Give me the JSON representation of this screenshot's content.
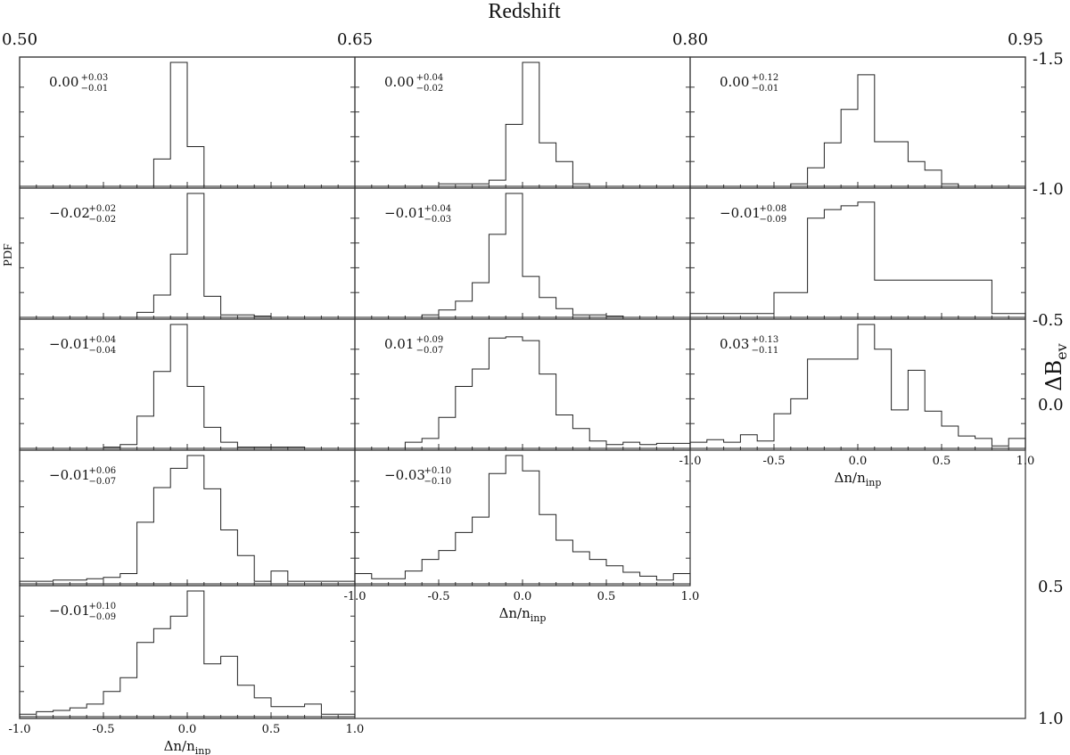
{
  "title": "Redshift",
  "top_ticks": [
    "0.50",
    "0.65",
    "0.80",
    "0.95"
  ],
  "right_ticks": [
    "-1.5",
    "-1.0",
    "-0.5",
    "0.0",
    "0.5",
    "1.0"
  ],
  "right_label": "ΔB",
  "right_label_sub": "ev",
  "left_label": "PDF",
  "x_tick_labels": [
    "-1.0",
    "-0.5",
    "0.0",
    "0.5",
    "1.0"
  ],
  "x_label": "Δn/n",
  "x_label_sub": "inp",
  "chart_data": {
    "type": "histogram-grid",
    "x_range": [
      -1.0,
      1.0
    ],
    "bins": [
      -1.0,
      -0.9,
      -0.8,
      -0.7,
      -0.6,
      -0.5,
      -0.4,
      -0.3,
      -0.2,
      -0.1,
      0.0,
      0.1,
      0.2,
      0.3,
      0.4,
      0.5,
      0.6,
      0.7,
      0.8,
      0.9
    ],
    "panels": [
      {
        "redshift_range": "0.50-0.65",
        "dB_range": "-1.5 to -1.0",
        "stat": {
          "v": "0.00",
          "up": "+0.03",
          "lo": "−0.01"
        },
        "values": [
          0,
          0,
          0,
          0,
          0,
          0,
          0,
          0,
          0.22,
          1.0,
          0.32,
          0,
          0,
          0,
          0,
          0,
          0,
          0,
          0,
          0
        ]
      },
      {
        "redshift_range": "0.65-0.80",
        "dB_range": "-1.5 to -1.0",
        "stat": {
          "v": "0.00",
          "up": "+0.04",
          "lo": "−0.02"
        },
        "values": [
          0,
          0,
          0,
          0,
          0,
          0.02,
          0.02,
          0.02,
          0.05,
          0.5,
          1.0,
          0.35,
          0.2,
          0.02,
          0,
          0,
          0,
          0,
          0,
          0
        ]
      },
      {
        "redshift_range": "0.80-0.95",
        "dB_range": "-1.5 to -1.0",
        "stat": {
          "v": "0.00",
          "up": "+0.12",
          "lo": "−0.01"
        },
        "values": [
          0,
          0,
          0,
          0,
          0,
          0,
          0.02,
          0.15,
          0.35,
          0.62,
          0.9,
          0.36,
          0.36,
          0.2,
          0.13,
          0.02,
          0,
          0,
          0,
          0
        ]
      },
      {
        "redshift_range": "0.50-0.65",
        "dB_range": "-1.0 to -0.5",
        "stat": {
          "v": "−0.02",
          "up": "+0.02",
          "lo": "−0.02"
        },
        "values": [
          0,
          0,
          0,
          0,
          0,
          0,
          0,
          0.04,
          0.18,
          0.51,
          1.0,
          0.17,
          0.02,
          0.02,
          0.01,
          0,
          0,
          0,
          0,
          0
        ]
      },
      {
        "redshift_range": "0.65-0.80",
        "dB_range": "-1.0 to -0.5",
        "stat": {
          "v": "−0.01",
          "up": "+0.04",
          "lo": "−0.03"
        },
        "values": [
          0,
          0,
          0,
          0,
          0.02,
          0.06,
          0.13,
          0.28,
          0.67,
          1.0,
          0.33,
          0.16,
          0.07,
          0.02,
          0.02,
          0.01,
          0,
          0,
          0,
          0
        ]
      },
      {
        "redshift_range": "0.80-0.95",
        "dB_range": "-1.0 to -0.5",
        "stat": {
          "v": "−0.01",
          "up": "+0.08",
          "lo": "−0.09"
        },
        "values": [
          0.03,
          0.03,
          0.03,
          0.03,
          0.03,
          0.2,
          0.2,
          0.8,
          0.87,
          0.9,
          0.93,
          0.3,
          0.3,
          0.3,
          0.3,
          0.3,
          0.3,
          0.3,
          0.03,
          0.03
        ]
      },
      {
        "redshift_range": "0.50-0.65",
        "dB_range": "-0.5 to 0.0",
        "stat": {
          "v": "−0.01",
          "up": "+0.04",
          "lo": "−0.04"
        },
        "values": [
          0,
          0,
          0,
          0,
          0,
          0.01,
          0.03,
          0.26,
          0.62,
          1.0,
          0.5,
          0.17,
          0.05,
          0.01,
          0.01,
          0.01,
          0.01,
          0,
          0,
          0
        ]
      },
      {
        "redshift_range": "0.65-0.80",
        "dB_range": "-0.5 to 0.0",
        "stat": {
          "v": "0.01",
          "up": "+0.09",
          "lo": "−0.07"
        },
        "values": [
          0,
          0,
          0,
          0.05,
          0.08,
          0.25,
          0.5,
          0.64,
          0.89,
          0.9,
          0.87,
          0.6,
          0.27,
          0.16,
          0.06,
          0.03,
          0.05,
          0.03,
          0.04,
          0.04
        ]
      },
      {
        "redshift_range": "0.80-0.95",
        "dB_range": "-0.5 to 0.0",
        "stat": {
          "v": "0.03",
          "up": "+0.13",
          "lo": "−0.11"
        },
        "values": [
          0.05,
          0.07,
          0.05,
          0.11,
          0.06,
          0.28,
          0.4,
          0.72,
          0.72,
          0.72,
          1.0,
          0.8,
          0.31,
          0.63,
          0.3,
          0.18,
          0.1,
          0.08,
          0.02,
          0.08
        ]
      },
      {
        "redshift_range": "0.50-0.65",
        "dB_range": "0.0 to 0.5",
        "stat": {
          "v": "−0.01",
          "up": "+0.06",
          "lo": "−0.07"
        },
        "values": [
          0.02,
          0.02,
          0.03,
          0.03,
          0.04,
          0.05,
          0.08,
          0.48,
          0.75,
          0.9,
          1.0,
          0.74,
          0.42,
          0.22,
          0.02,
          0.1,
          0.02,
          0.02,
          0.02,
          0.02
        ]
      },
      {
        "redshift_range": "0.65-0.80",
        "dB_range": "0.0 to 0.5",
        "stat": {
          "v": "−0.03",
          "up": "+0.10",
          "lo": "−0.10"
        },
        "values": [
          0.08,
          0.04,
          0.04,
          0.1,
          0.19,
          0.26,
          0.4,
          0.52,
          0.86,
          1.0,
          0.88,
          0.54,
          0.34,
          0.25,
          0.19,
          0.14,
          0.09,
          0.06,
          0.03,
          0.08
        ]
      },
      {
        "redshift_range": "0.50-0.65",
        "dB_range": "0.5 to 1.0",
        "stat": {
          "v": "−0.01",
          "up": "+0.10",
          "lo": "−0.09"
        },
        "values": [
          0.02,
          0.04,
          0.05,
          0.07,
          0.1,
          0.2,
          0.31,
          0.59,
          0.7,
          0.8,
          1.0,
          0.42,
          0.48,
          0.25,
          0.15,
          0.08,
          0.08,
          0.1,
          0.02,
          0.02
        ]
      }
    ]
  }
}
